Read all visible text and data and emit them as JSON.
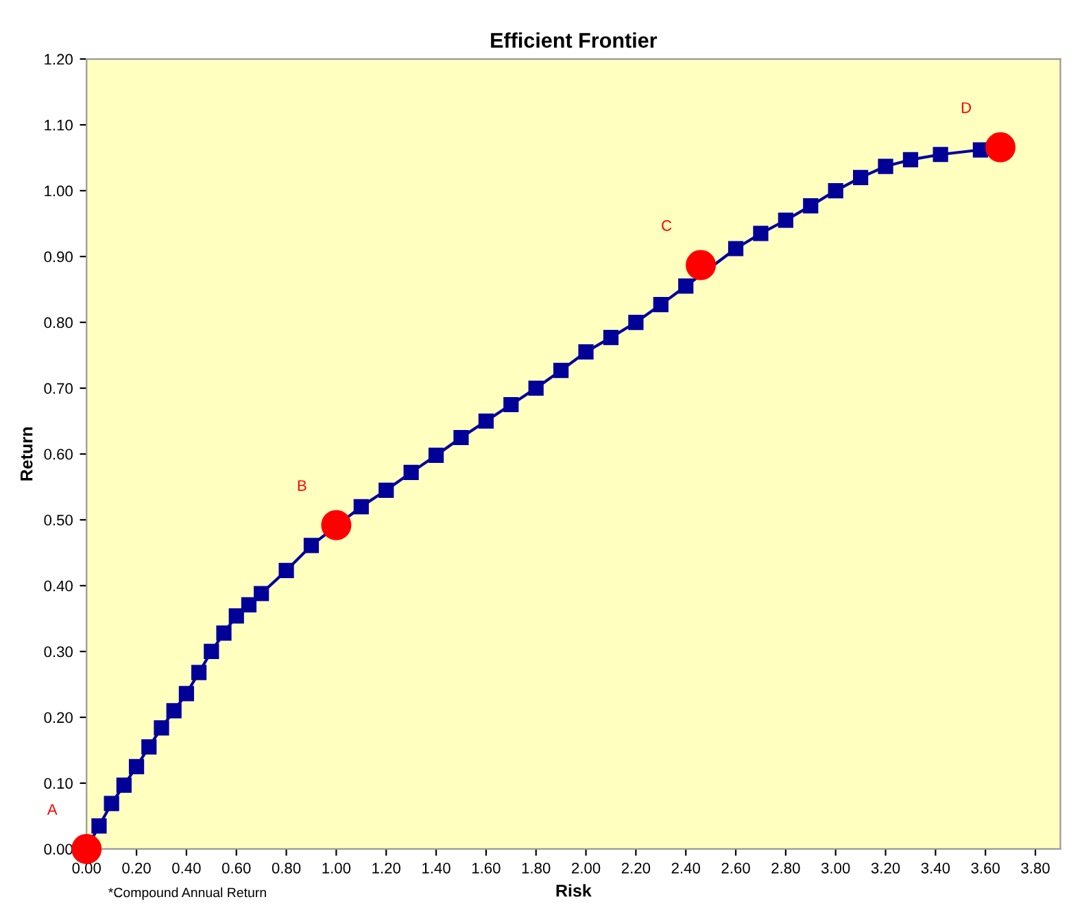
{
  "chart_data": {
    "type": "line",
    "title": "Efficient Frontier",
    "xlabel": "Risk",
    "ylabel": "Return",
    "xlim": [
      0,
      3.9
    ],
    "xticks": [
      {
        "value": 0,
        "label": "0.00"
      },
      {
        "value": 0.2,
        "label": "0.20"
      },
      {
        "value": 0.4,
        "label": "0.40"
      },
      {
        "value": 0.6,
        "label": "0.60"
      },
      {
        "value": 0.8,
        "label": "0.80"
      },
      {
        "value": 1,
        "label": "1.00"
      },
      {
        "value": 1.2,
        "label": "1.20"
      },
      {
        "value": 1.4,
        "label": "1.40"
      },
      {
        "value": 1.6,
        "label": "1.60"
      },
      {
        "value": 1.8,
        "label": "1.80"
      },
      {
        "value": 2,
        "label": "2.00"
      },
      {
        "value": 2.2,
        "label": "2.20"
      },
      {
        "value": 2.4,
        "label": "2.40"
      },
      {
        "value": 2.6,
        "label": "2.60"
      },
      {
        "value": 2.8,
        "label": "2.80"
      },
      {
        "value": 3,
        "label": "3.00"
      },
      {
        "value": 3.2,
        "label": "3.20"
      },
      {
        "value": 3.4,
        "label": "3.40"
      },
      {
        "value": 3.6,
        "label": "3.60"
      },
      {
        "value": 3.8,
        "label": "3.80"
      }
    ],
    "ylim": [
      0,
      1.2
    ],
    "yticks": [
      {
        "value": 0,
        "label": "0.00"
      },
      {
        "value": 0.1,
        "label": "0.10"
      },
      {
        "value": 0.2,
        "label": "0.20"
      },
      {
        "value": 0.3,
        "label": "0.30"
      },
      {
        "value": 0.4,
        "label": "0.40"
      },
      {
        "value": 0.5,
        "label": "0.50"
      },
      {
        "value": 0.6,
        "label": "0.60"
      },
      {
        "value": 0.7,
        "label": "0.70"
      },
      {
        "value": 0.8,
        "label": "0.80"
      },
      {
        "value": 0.9,
        "label": "0.90"
      },
      {
        "value": 1,
        "label": "1.00"
      },
      {
        "value": 1.1,
        "label": "1.10"
      },
      {
        "value": 1.2,
        "label": "1.20"
      }
    ],
    "grid": false,
    "legend": false,
    "series": [
      {
        "type": "line",
        "color": "#000099",
        "marker": "square",
        "line_style": "solid",
        "x": [
          0,
          0.05,
          0.1,
          0.15,
          0.2,
          0.25,
          0.3,
          0.35,
          0.4,
          0.45,
          0.5,
          0.55,
          0.6,
          0.65,
          0.7,
          0.8,
          0.9,
          1.1,
          1.2,
          1.3,
          1.4,
          1.5,
          1.6,
          1.7,
          1.8,
          1.9,
          2.0,
          2.1,
          2.2,
          2.3,
          2.4,
          2.6,
          2.7,
          2.8,
          2.9,
          3.0,
          3.1,
          3.2,
          3.3,
          3.42,
          3.58
        ],
        "values": [
          0,
          0.035,
          0.069,
          0.097,
          0.125,
          0.155,
          0.184,
          0.21,
          0.236,
          0.268,
          0.3,
          0.328,
          0.354,
          0.371,
          0.388,
          0.423,
          0.461,
          0.52,
          0.545,
          0.572,
          0.598,
          0.625,
          0.65,
          0.675,
          0.7,
          0.727,
          0.755,
          0.777,
          0.8,
          0.827,
          0.855,
          0.912,
          0.935,
          0.955,
          0.977,
          1.0,
          1.02,
          1.037,
          1.047,
          1.055,
          1.062
        ]
      },
      {
        "type": "scatter",
        "color": "#ff0000",
        "marker": "circle",
        "x": [
          0,
          1.0,
          2.46,
          3.66
        ],
        "values": [
          0,
          0.492,
          0.887,
          1.066
        ]
      }
    ],
    "annotations": [
      {
        "text": "A",
        "x": 0,
        "y": 0
      },
      {
        "text": "B",
        "x": 1.0,
        "y": 0.492
      },
      {
        "text": "C",
        "x": 2.46,
        "y": 0.887
      },
      {
        "text": "D",
        "x": 3.66,
        "y": 1.066
      },
      "*Compound Annual Return"
    ]
  }
}
